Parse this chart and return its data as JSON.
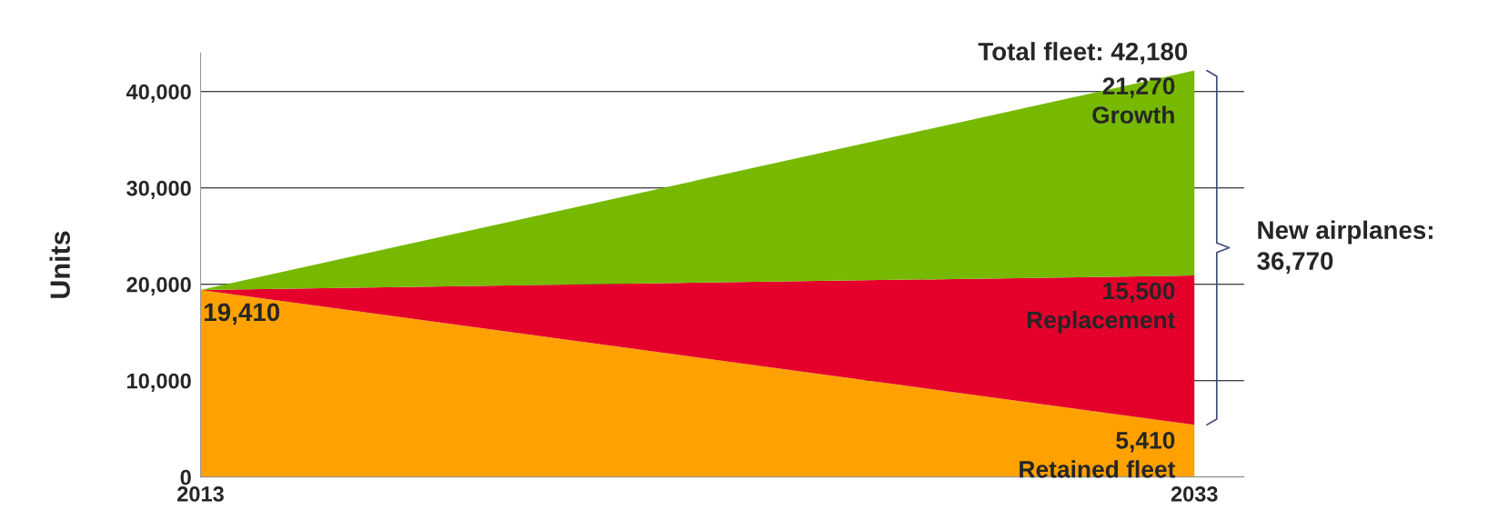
{
  "chart_data": {
    "type": "area",
    "stacked": true,
    "ylabel": "Units",
    "x": [
      2013,
      2033
    ],
    "series": [
      {
        "name": "Retained fleet",
        "color": "#ffa100",
        "values": [
          19410,
          5410
        ],
        "value_labels": [
          "19,410",
          "5,410"
        ]
      },
      {
        "name": "Replacement",
        "color": "#e4002b",
        "values": [
          0,
          15500
        ],
        "value_labels": [
          null,
          "15,500"
        ]
      },
      {
        "name": "Growth",
        "color": "#76b900",
        "values": [
          0,
          21270
        ],
        "value_labels": [
          null,
          "21,270"
        ]
      }
    ],
    "xlim": [
      2013,
      2034
    ],
    "xticks": [
      2013,
      2033
    ],
    "ylim": [
      0,
      44000
    ],
    "yticks": [
      0,
      {
        "value": 10000,
        "label": "10,000"
      },
      {
        "value": 20000,
        "label": "20,000"
      },
      {
        "value": 30000,
        "label": "30,000"
      },
      {
        "value": 40000,
        "label": "40,000"
      }
    ],
    "grid": "y",
    "legend": false,
    "annotations": [
      "Total fleet: 42,180",
      "New airplanes:\n36,770"
    ]
  }
}
